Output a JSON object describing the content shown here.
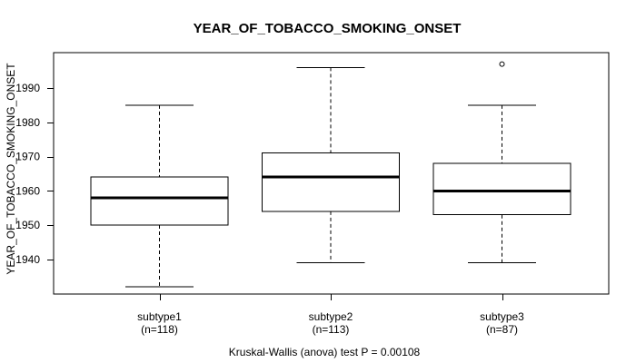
{
  "title": "YEAR_OF_TOBACCO_SMOKING_ONSET",
  "y_axis": {
    "label": "YEAR_OF_TOBACCO_SMOKING_ONSET",
    "tick_labels": [
      "1940",
      "1950",
      "1960",
      "1970",
      "1980",
      "1990"
    ]
  },
  "caption": "Kruskal-Wallis (anova) test P = 0.00108",
  "chart_data": {
    "type": "boxplot",
    "title": "YEAR_OF_TOBACCO_SMOKING_ONSET",
    "xlabel": "",
    "ylabel": "YEAR_OF_TOBACCO_SMOKING_ONSET",
    "ylim": [
      1930,
      2000
    ],
    "yticks": [
      1940,
      1950,
      1960,
      1970,
      1980,
      1990
    ],
    "grid": false,
    "legend": "none",
    "annotation": "Kruskal-Wallis (anova) test P = 0.00108",
    "categories": [
      "subtype1",
      "subtype2",
      "subtype3"
    ],
    "groups": [
      {
        "label": "subtype1",
        "n_label": "(n=118)",
        "n": 118,
        "whisker_low": 1932,
        "q1": 1950,
        "median": 1958,
        "q3": 1964,
        "whisker_high": 1985,
        "outliers": []
      },
      {
        "label": "subtype2",
        "n_label": "(n=113)",
        "n": 113,
        "whisker_low": 1939,
        "q1": 1954,
        "median": 1964,
        "q3": 1971,
        "whisker_high": 1996,
        "outliers": []
      },
      {
        "label": "subtype3",
        "n_label": "(n=87)",
        "n": 87,
        "whisker_low": 1939,
        "q1": 1953,
        "median": 1960,
        "q3": 1968,
        "whisker_high": 1985,
        "outliers": [
          1997
        ]
      }
    ],
    "colors": {
      "stroke": "#000000",
      "box_fill": "#ffffff",
      "background": "#ffffff"
    }
  }
}
